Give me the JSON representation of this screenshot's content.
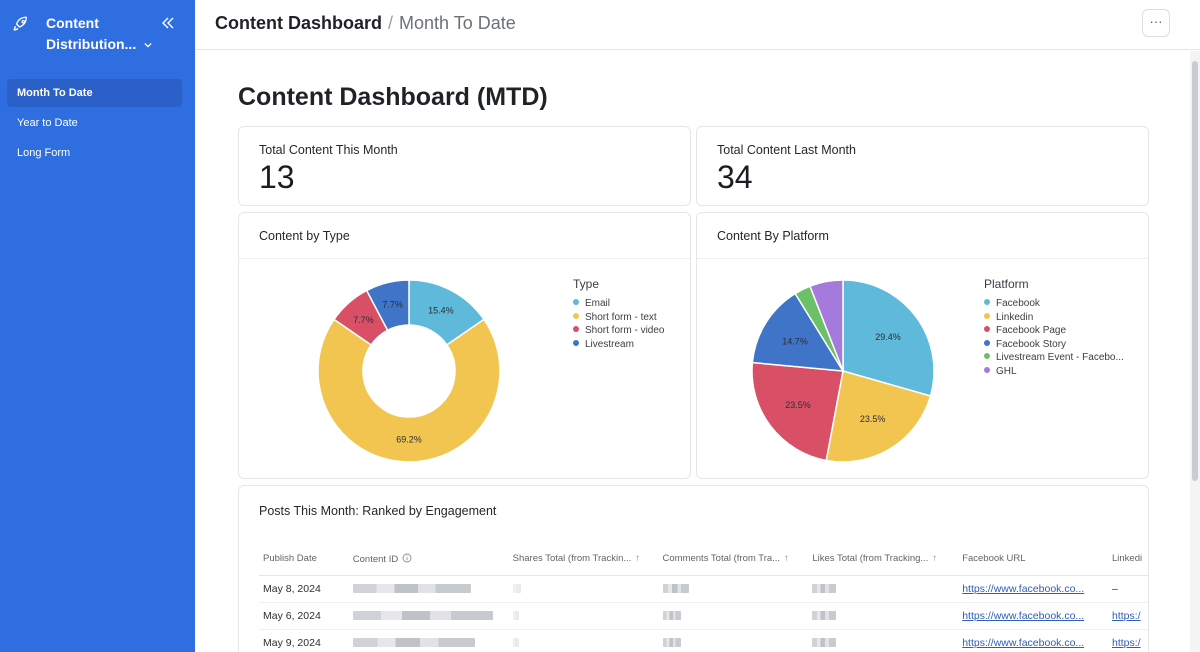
{
  "sidebar": {
    "app_title": "Content Distribution...",
    "logo_icon": "rocket-icon",
    "collapse_icon": "double-chevron-left-icon",
    "items": [
      {
        "label": "Month To Date",
        "active": true
      },
      {
        "label": "Year to Date",
        "active": false
      },
      {
        "label": "Long Form",
        "active": false
      }
    ],
    "color": "#2f6ee0"
  },
  "header": {
    "title": "Content Dashboard",
    "separator": "/",
    "subtitle": "Month To Date",
    "more_label": "···"
  },
  "main": {
    "page_title": "Content Dashboard (MTD)",
    "stats": [
      {
        "label": "Total Content This Month",
        "value": "13"
      },
      {
        "label": "Total Content Last Month",
        "value": "34"
      }
    ]
  },
  "chart_data": [
    {
      "type": "pie",
      "title": "Content by Type",
      "legend_title": "Type",
      "legend_position": "right",
      "donut": true,
      "categories": [
        "Email",
        "Short form - text",
        "Short form - video",
        "Livestream"
      ],
      "values": [
        15.4,
        69.2,
        7.7,
        7.7
      ],
      "labels": [
        "15.4%",
        "69.2%",
        "7.7%",
        "7.7%"
      ],
      "colors": [
        "#5fb9da",
        "#f1c550",
        "#d94f66",
        "#3f74c8"
      ]
    },
    {
      "type": "pie",
      "title": "Content By Platform",
      "legend_title": "Platform",
      "legend_position": "right",
      "donut": false,
      "categories": [
        "Facebook",
        "Linkedin",
        "Facebook Page",
        "Facebook Story",
        "Livestream Event - Facebo...",
        "GHL"
      ],
      "values": [
        29.4,
        23.5,
        23.5,
        14.7,
        2.9,
        5.9
      ],
      "labels": [
        "29.4%",
        "23.5%",
        "23.5%",
        "14.7%",
        "",
        ""
      ],
      "colors": [
        "#5fb9da",
        "#f1c550",
        "#d94f66",
        "#3f74c8",
        "#6cc068",
        "#a679dc"
      ]
    }
  ],
  "table": {
    "title": "Posts This Month: Ranked by Engagement",
    "columns": [
      "Publish Date",
      "Content ID",
      "Shares Total (from Trackin...",
      "Comments Total (from Tra...",
      "Likes Total (from Tracking...",
      "Facebook URL",
      "Linkedi"
    ],
    "info_icon": "info-circle-icon",
    "sort_icon": "sort-arrow-up-icon",
    "rows": [
      {
        "date": "May 8, 2024",
        "facebook": "https://www.facebook.co...",
        "linkedin": "–"
      },
      {
        "date": "May 6, 2024",
        "facebook": "https://www.facebook.co...",
        "linkedin": "https:/"
      },
      {
        "date": "May 9, 2024",
        "facebook": "https://www.facebook.co...",
        "linkedin": "https:/"
      }
    ]
  }
}
